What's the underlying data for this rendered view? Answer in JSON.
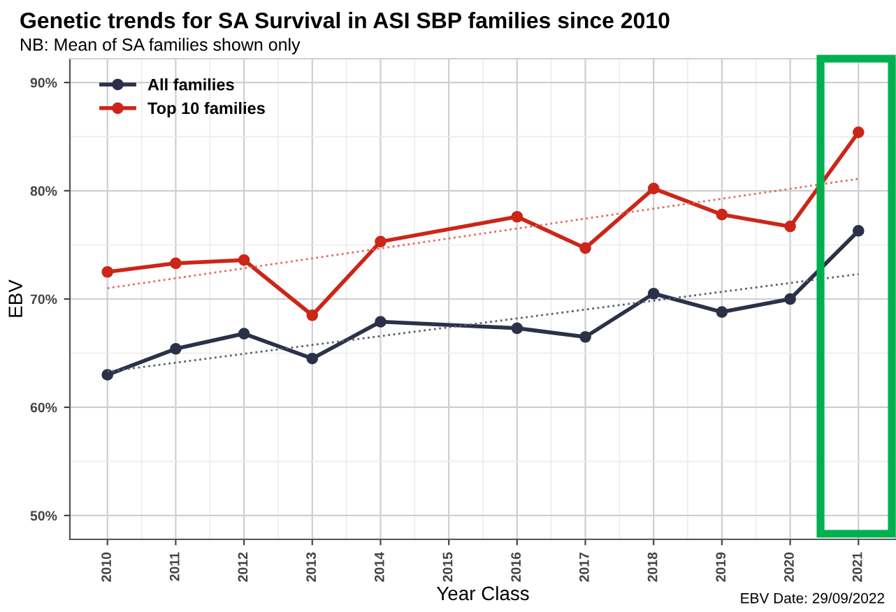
{
  "chart_data": {
    "type": "line",
    "title": "Genetic trends for SA Survival in ASI SBP families since 2010",
    "subtitle": "NB: Mean of SA families shown only",
    "xlabel": "Year Class",
    "ylabel": "EBV",
    "annotations": [
      "EBV Date: 29/09/2022"
    ],
    "x": [
      2010,
      2011,
      2012,
      2013,
      2014,
      2016,
      2017,
      2018,
      2019,
      2020,
      2021
    ],
    "series": [
      {
        "name": "All families",
        "color": "#2b3148",
        "values": [
          63.0,
          65.4,
          66.8,
          64.5,
          67.9,
          67.3,
          66.5,
          70.5,
          68.8,
          70.0,
          76.3
        ],
        "marker": "circle",
        "line_style": "solid"
      },
      {
        "name": "Top 10 families",
        "color": "#cc2618",
        "values": [
          72.5,
          73.3,
          73.6,
          68.5,
          75.3,
          77.6,
          74.7,
          80.2,
          77.8,
          76.7,
          85.4
        ],
        "marker": "circle",
        "line_style": "solid"
      },
      {
        "color": "#5a5f70",
        "values": [
          63.3,
          null,
          null,
          null,
          null,
          null,
          null,
          null,
          null,
          null,
          72.3
        ],
        "marker": "none",
        "line_style": "dotted"
      },
      {
        "color": "#e06a60",
        "values": [
          71.0,
          null,
          null,
          null,
          null,
          null,
          null,
          null,
          null,
          null,
          81.1
        ],
        "marker": "none",
        "line_style": "dotted"
      }
    ],
    "xlim": [
      2009.45,
      2021.55
    ],
    "ylim": [
      47.8,
      92.2
    ],
    "xticks": [
      2010,
      2011,
      2012,
      2013,
      2014,
      2015,
      2016,
      2017,
      2018,
      2019,
      2020,
      2021
    ],
    "yticks": [
      {
        "value": 50,
        "label": "50%"
      },
      {
        "value": 60,
        "label": "60%"
      },
      {
        "value": 70,
        "label": "70%"
      },
      {
        "value": 80,
        "label": "80%"
      },
      {
        "value": 90,
        "label": "90%"
      }
    ],
    "grid": true,
    "legend": "top left"
  }
}
